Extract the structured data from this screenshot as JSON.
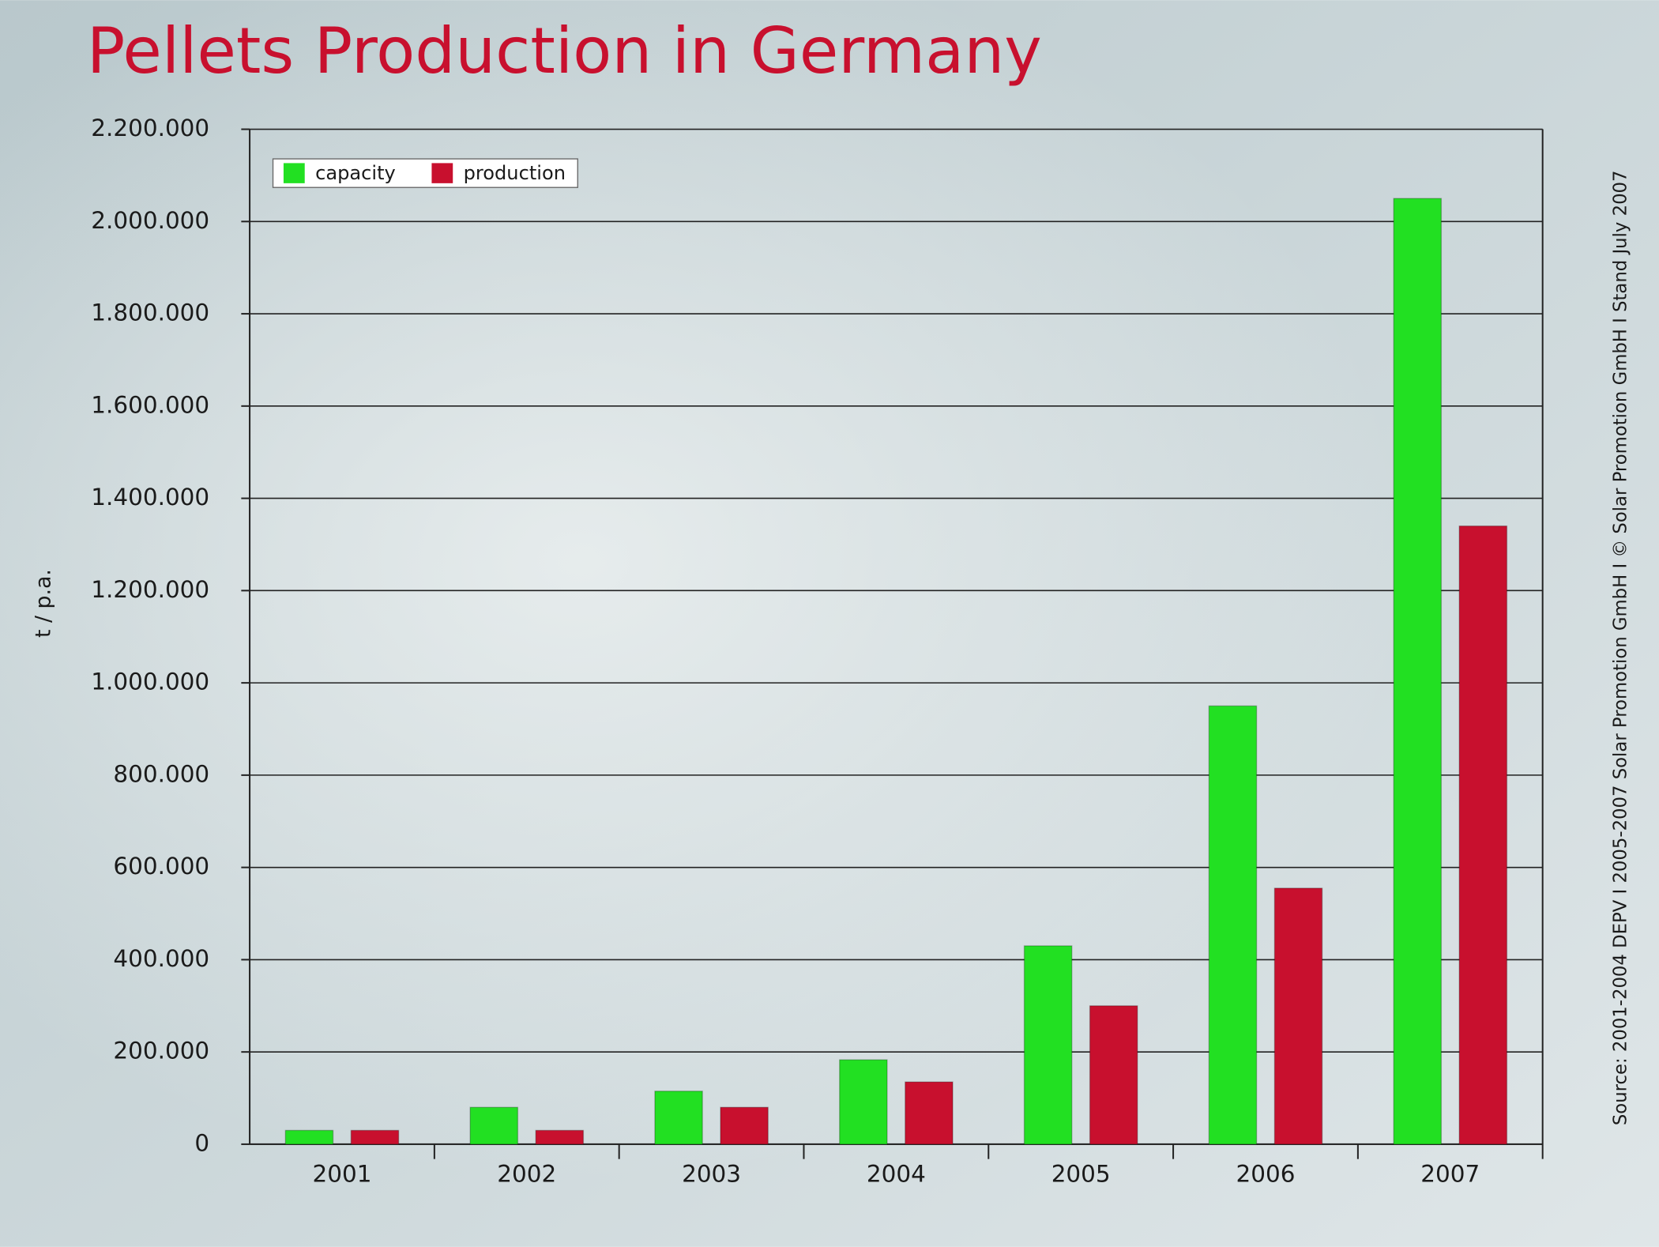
{
  "chart_data": {
    "type": "bar",
    "title": "Pellets Production in Germany",
    "y_label": "t / p.a.",
    "source": "Source: 2001-2004 DEPV I 2005-2007 Solar Promotion GmbH I © Solar Promotion GmbH I Stand July 2007",
    "categories": [
      "2001",
      "2002",
      "2003",
      "2004",
      "2005",
      "2006",
      "2007"
    ],
    "series": [
      {
        "name": "capacity",
        "color": "#22e022",
        "values": [
          30000,
          80000,
          115000,
          183000,
          430000,
          950000,
          2050000
        ]
      },
      {
        "name": "production",
        "color": "#c8102e",
        "values": [
          30000,
          30000,
          80000,
          135000,
          300000,
          555000,
          1340000
        ]
      }
    ],
    "ylim": [
      0,
      2200000
    ],
    "yticks": [
      0,
      {
        "value": 200000,
        "label": "200.000"
      },
      {
        "value": 400000,
        "label": "400.000"
      },
      {
        "value": 600000,
        "label": "600.000"
      },
      {
        "value": 800000,
        "label": "800.000"
      },
      {
        "value": 1000000,
        "label": "1.000.000"
      },
      {
        "value": 1200000,
        "label": "1.200.000"
      },
      {
        "value": 1400000,
        "label": "1.400.000"
      },
      {
        "value": 1600000,
        "label": "1.600.000"
      },
      {
        "value": 1800000,
        "label": "1.800.000"
      },
      {
        "value": 2000000,
        "label": "2.000.000"
      },
      {
        "value": 2200000,
        "label": "2.200.000"
      }
    ],
    "grid": true,
    "legend": "top-left"
  }
}
